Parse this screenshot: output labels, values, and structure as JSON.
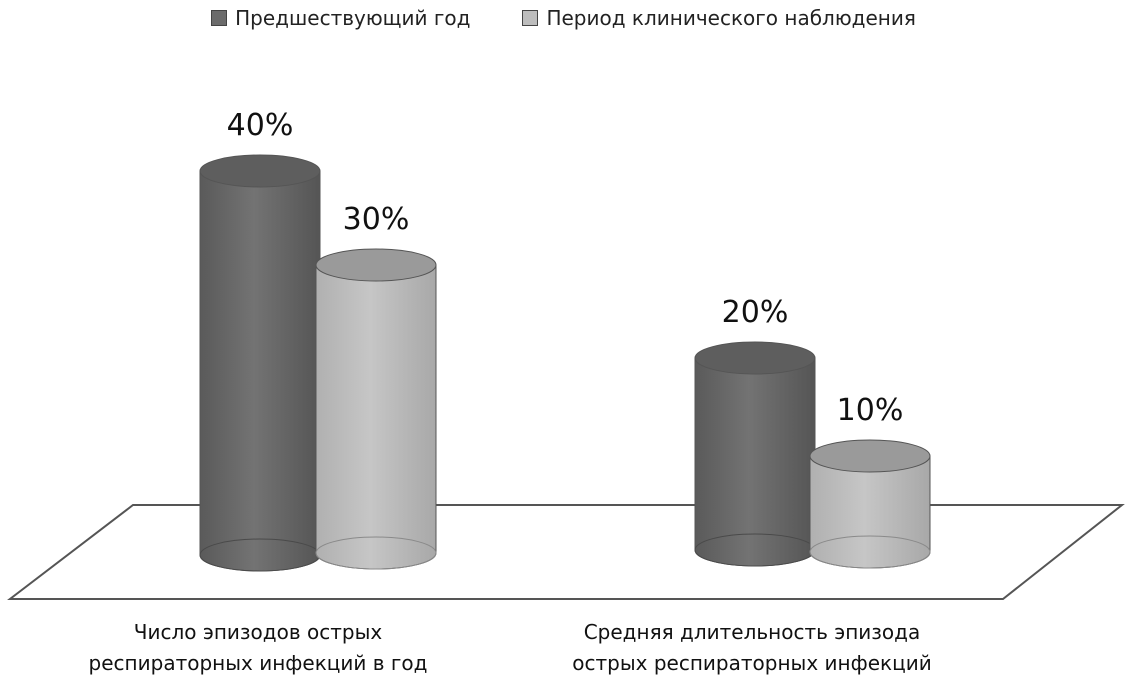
{
  "chart_data": {
    "type": "bar",
    "style": "3d-cylinder",
    "categories": [
      "Число эпизодов острых\nреспираторных инфекций в год",
      "Средняя длительность эпизода\nострых респираторных инфекций"
    ],
    "series": [
      {
        "name": "Предшествующий год",
        "values": [
          40,
          20
        ],
        "color": "#6b6b6b"
      },
      {
        "name": "Период клинического наблюдения",
        "values": [
          30,
          10
        ],
        "color": "#bdbdbd"
      }
    ],
    "data_labels": [
      [
        "40%",
        "20%"
      ],
      [
        "30%",
        "10%"
      ]
    ],
    "unit": "%",
    "legend_position": "top",
    "grid": false,
    "ylim": [
      0,
      45
    ]
  }
}
